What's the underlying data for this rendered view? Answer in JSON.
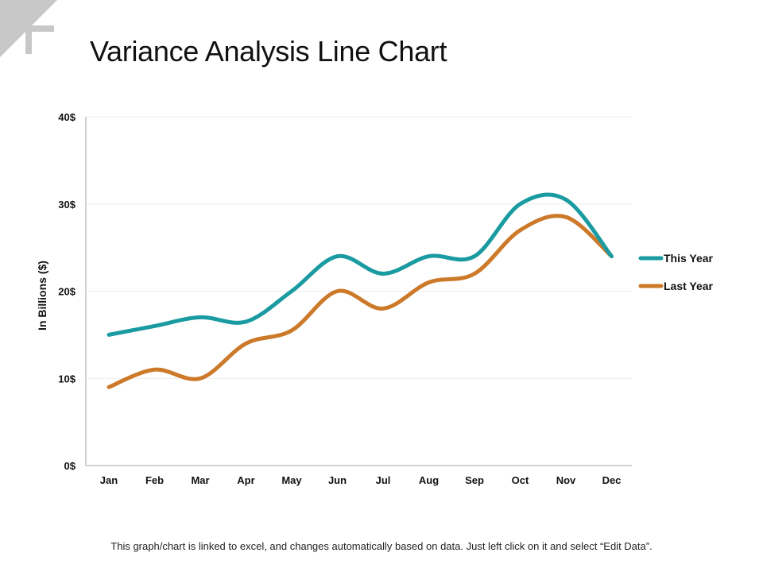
{
  "page": {
    "title": "Variance Analysis Line Chart",
    "footer_note": "This graph/chart is linked to excel, and changes automatically based on data. Just left click on it and select “Edit Data”."
  },
  "colors": {
    "this_year": "#1a9ba1",
    "last_year": "#cc7a2a",
    "axis": "#a6a6a6",
    "grid": "#ececec",
    "corner_decoration": "#c8c8c8"
  },
  "chart_data": {
    "type": "line",
    "title": "",
    "xlabel": "",
    "ylabel": "In Billions ($)",
    "categories": [
      "Jan",
      "Feb",
      "Mar",
      "Apr",
      "May",
      "Jun",
      "Jul",
      "Aug",
      "Sep",
      "Oct",
      "Nov",
      "Dec"
    ],
    "ylim": [
      0,
      40
    ],
    "yticks": [
      0,
      10,
      20,
      30,
      40
    ],
    "ytick_labels": [
      "0$",
      "10$",
      "20$",
      "30$",
      "40$"
    ],
    "grid": true,
    "smooth": true,
    "legend_position": "right",
    "series": [
      {
        "name": "This Year",
        "values": [
          15,
          16,
          17,
          16.5,
          20,
          24,
          22,
          24,
          24,
          30,
          30.5,
          24
        ]
      },
      {
        "name": "Last Year",
        "values": [
          9,
          11,
          10,
          14,
          15.5,
          20,
          18,
          21,
          22,
          27,
          28.5,
          24
        ]
      }
    ]
  }
}
